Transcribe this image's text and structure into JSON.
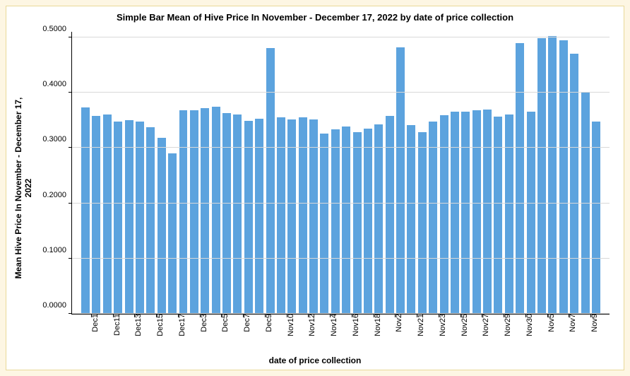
{
  "chart": {
    "type": "bar",
    "title": "Simple Bar Mean of Hive Price In November - December 17, 2022 by date of price collection",
    "title_fontsize": 13,
    "ylabel": "Mean Hive Price In November - December 17,\n2022",
    "xlabel": "date of price collection",
    "label_fontsize": 12,
    "ylim": [
      0.0,
      0.5
    ],
    "ytick_step": 0.1,
    "ytick_decimals": 4,
    "tick_fontsize": 11,
    "bar_color": "#5ca3de",
    "background_color": "#ffffff",
    "outer_background": "#fdf6e3",
    "border_color": "#e8d898",
    "grid_color": "#d8d8d8",
    "bar_width_ratio": 0.78,
    "categories": [
      "Dec1",
      "Dec11",
      "Dec13",
      "Dec15",
      "Dec17",
      "Dec3",
      "Dec5",
      "Dec7",
      "Dec9",
      "Nov10",
      "Nov12",
      "Nov14",
      "Nov16",
      "Nov18",
      "Nov2",
      "Nov21",
      "Nov23",
      "Nov25",
      "Nov27",
      "Nov29",
      "Nov30",
      "Nov5",
      "Nov7",
      "Nov9"
    ],
    "group_size": 2,
    "values": [
      0.373,
      0.358,
      0.361,
      0.348,
      0.35,
      0.348,
      0.338,
      0.318,
      0.29,
      0.368,
      0.368,
      0.372,
      0.374,
      0.363,
      0.36,
      0.349,
      0.353,
      0.48,
      0.355,
      0.351,
      0.355,
      0.351,
      0.326,
      0.333,
      0.339,
      0.328,
      0.335,
      0.343,
      0.358,
      0.482,
      0.341,
      0.328,
      0.348,
      0.359,
      0.365,
      0.365,
      0.368,
      0.37,
      0.357,
      0.36,
      0.49,
      0.365,
      0.498,
      0.502,
      0.495,
      0.47,
      0.4,
      0.348
    ]
  }
}
